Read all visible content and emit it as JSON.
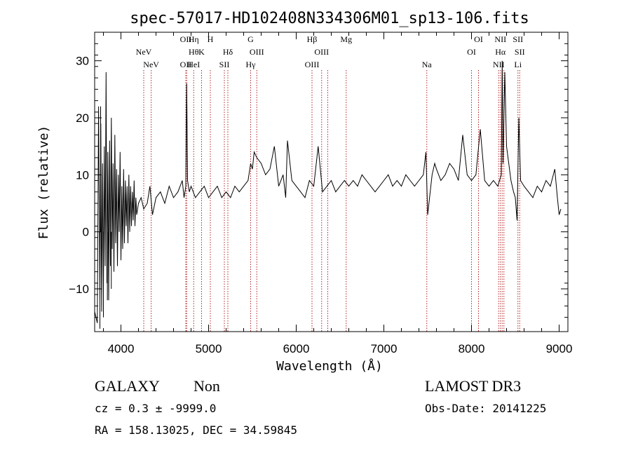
{
  "chart_data": {
    "type": "line",
    "title": "spec-57017-HD102408N334306M01_sp13-106.fits",
    "xlabel": "Wavelength (Å)",
    "ylabel": "Flux (relative)",
    "xlim": [
      3700,
      9100
    ],
    "ylim": [
      -17.5,
      35
    ],
    "x_ticks": [
      4000,
      5000,
      6000,
      7000,
      8000,
      9000
    ],
    "y_ticks": [
      -10,
      0,
      10,
      20,
      30
    ],
    "line_color": "#000000",
    "marker_color": "#b22222",
    "series": [
      {
        "name": "flux",
        "x": [
          3700,
          3730,
          3745,
          3760,
          3770,
          3780,
          3790,
          3800,
          3810,
          3820,
          3830,
          3840,
          3850,
          3860,
          3870,
          3880,
          3890,
          3900,
          3910,
          3920,
          3930,
          3940,
          3950,
          3960,
          3970,
          3980,
          3990,
          4000,
          4010,
          4020,
          4030,
          4040,
          4050,
          4060,
          4070,
          4080,
          4090,
          4100,
          4110,
          4120,
          4130,
          4140,
          4150,
          4160,
          4170,
          4180,
          4200,
          4230,
          4260,
          4300,
          4330,
          4360,
          4400,
          4450,
          4500,
          4550,
          4600,
          4650,
          4700,
          4720,
          4740,
          4750,
          4760,
          4780,
          4800,
          4850,
          4900,
          4950,
          5000,
          5050,
          5100,
          5150,
          5200,
          5250,
          5300,
          5350,
          5400,
          5450,
          5480,
          5500,
          5520,
          5550,
          5600,
          5650,
          5700,
          5750,
          5800,
          5850,
          5880,
          5900,
          5950,
          6000,
          6050,
          6100,
          6150,
          6200,
          6250,
          6300,
          6350,
          6400,
          6450,
          6500,
          6550,
          6600,
          6650,
          6700,
          6750,
          6800,
          6850,
          6900,
          6950,
          7000,
          7050,
          7100,
          7150,
          7200,
          7250,
          7300,
          7350,
          7400,
          7450,
          7480,
          7500,
          7550,
          7580,
          7600,
          7650,
          7700,
          7750,
          7800,
          7850,
          7900,
          7950,
          8000,
          8050,
          8100,
          8150,
          8200,
          8250,
          8300,
          8320,
          8340,
          8350,
          8360,
          8380,
          8400,
          8450,
          8480,
          8500,
          8520,
          8540,
          8560,
          8600,
          8650,
          8700,
          8750,
          8800,
          8850,
          8900,
          8950,
          8980,
          9000,
          9020
        ],
        "y": [
          -14,
          -16,
          22,
          -12,
          19,
          -14,
          12,
          -11,
          15,
          -6,
          28,
          -9,
          14,
          -12,
          16,
          -6,
          20,
          -3,
          12,
          -7,
          17,
          -2,
          11,
          -6,
          10,
          0,
          14,
          -5,
          8,
          -3,
          11,
          -2,
          9,
          1,
          8,
          -2,
          10,
          0,
          8,
          1,
          7,
          2,
          9,
          1,
          6,
          3,
          5,
          6,
          4,
          5,
          8,
          3,
          6,
          7,
          5,
          8,
          6,
          7,
          9,
          6,
          8,
          26,
          9,
          7,
          8,
          6,
          7,
          8,
          6,
          7,
          8,
          6,
          7,
          6,
          8,
          7,
          8,
          9,
          12,
          11,
          14,
          13,
          12,
          10,
          11,
          15,
          8,
          10,
          6,
          16,
          9,
          8,
          7,
          6,
          9,
          8,
          15,
          7,
          8,
          9,
          7,
          8,
          9,
          8,
          9,
          8,
          10,
          9,
          8,
          7,
          8,
          9,
          10,
          8,
          9,
          8,
          10,
          9,
          8,
          9,
          10,
          14,
          3,
          10,
          12,
          11,
          9,
          10,
          12,
          11,
          9,
          17,
          10,
          9,
          10,
          18,
          9,
          8,
          9,
          8,
          9,
          10,
          30,
          12,
          28,
          15,
          9,
          7,
          6,
          2,
          20,
          9,
          8,
          7,
          6,
          8,
          7,
          9,
          8,
          11,
          6,
          3,
          4
        ],
        "sparkles": [
          [
            3760,
            -17
          ],
          [
            3768,
            22
          ],
          [
            3800,
            -15
          ],
          [
            3845,
            -12
          ],
          [
            3890,
            -10
          ]
        ]
      }
    ],
    "line_markers": [
      {
        "x": 4260,
        "row1": "",
        "row2": "NeV",
        "row3": ""
      },
      {
        "x": 4345,
        "row1": "",
        "row2": "",
        "row3": "NeV"
      },
      {
        "x": 4740,
        "row1": "OII",
        "row2": "",
        "row3": "OII"
      },
      {
        "x": 4750,
        "row1": "",
        "row2": "",
        "row3": ""
      },
      {
        "x": 4830,
        "row1": "Hη",
        "row2": "Hθ",
        "row3": "HeI"
      },
      {
        "x": 4920,
        "row1": "",
        "row2": "K",
        "row3": ""
      },
      {
        "x": 5020,
        "row1": "H",
        "row2": "",
        "row3": ""
      },
      {
        "x": 5180,
        "row1": "",
        "row2": "",
        "row3": "SII"
      },
      {
        "x": 5220,
        "row1": "",
        "row2": "Hδ",
        "row3": ""
      },
      {
        "x": 5480,
        "row1": "G",
        "row2": "",
        "row3": "Hγ"
      },
      {
        "x": 5550,
        "row1": "",
        "row2": "OIII",
        "row3": ""
      },
      {
        "x": 6180,
        "row1": "Hβ",
        "row2": "",
        "row3": "OIII"
      },
      {
        "x": 6290,
        "row1": "",
        "row2": "OIII",
        "row3": ""
      },
      {
        "x": 6360,
        "row1": "",
        "row2": "",
        "row3": ""
      },
      {
        "x": 6570,
        "row1": "Mg",
        "row2": "",
        "row3": ""
      },
      {
        "x": 7490,
        "row1": "",
        "row2": "",
        "row3": "Na"
      },
      {
        "x": 8000,
        "row1": "",
        "row2": "OI",
        "row3": ""
      },
      {
        "x": 8080,
        "row1": "OI",
        "row2": "",
        "row3": ""
      },
      {
        "x": 8310,
        "row1": "",
        "row2": "",
        "row3": "NII"
      },
      {
        "x": 8330,
        "row1": "NII",
        "row2": "Hα",
        "row3": ""
      },
      {
        "x": 8350,
        "row1": "",
        "row2": "",
        "row3": ""
      },
      {
        "x": 8370,
        "row1": "",
        "row2": "",
        "row3": ""
      },
      {
        "x": 8530,
        "row1": "SII",
        "row2": "",
        "row3": "Li"
      },
      {
        "x": 8550,
        "row1": "",
        "row2": "SII",
        "row3": ""
      }
    ]
  },
  "info": {
    "class": "GALAXY",
    "subclass": "Non",
    "survey": "LAMOST DR3",
    "cz": "cz = 0.3 ± -9999.0",
    "obs_date": "Obs-Date: 20141225",
    "coords": "RA = 158.13025, DEC =  34.59845"
  }
}
